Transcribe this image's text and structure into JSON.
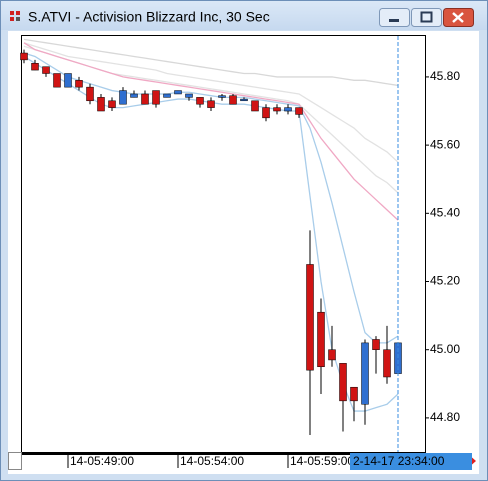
{
  "chart_data": {
    "type": "candlestick",
    "title": "S.ATVI - Activision Blizzard Inc, 30 Sec",
    "categories": [
      null,
      null,
      null,
      null,
      "14-05:49:00",
      null,
      null,
      null,
      null,
      null,
      null,
      null,
      null,
      null,
      "14-05:54:00",
      null,
      null,
      null,
      null,
      null,
      null,
      null,
      null,
      null,
      "14-05:59:00",
      null,
      null,
      null,
      null,
      null,
      null,
      null,
      null,
      null,
      null
    ],
    "open": [
      45.87,
      45.84,
      45.83,
      45.81,
      45.77,
      45.79,
      45.77,
      45.74,
      45.73,
      45.72,
      45.74,
      45.75,
      45.76,
      45.74,
      45.75,
      45.74,
      45.74,
      45.73,
      45.74,
      45.745,
      45.73,
      45.73,
      45.71,
      45.71,
      45.7,
      45.71,
      45.25,
      45.11,
      45.0,
      44.96,
      44.89,
      44.84,
      45.03,
      45.0,
      44.93
    ],
    "high": [
      45.88,
      45.85,
      45.83,
      45.81,
      45.81,
      45.8,
      45.78,
      45.75,
      45.74,
      45.77,
      45.76,
      45.76,
      45.76,
      45.75,
      45.76,
      45.75,
      45.74,
      45.74,
      45.75,
      45.75,
      45.74,
      45.73,
      45.72,
      45.72,
      45.72,
      45.71,
      45.35,
      45.15,
      45.07,
      44.96,
      44.89,
      45.03,
      45.04,
      45.07,
      45.02
    ],
    "low": [
      45.84,
      45.82,
      45.8,
      45.77,
      45.77,
      45.76,
      45.72,
      45.7,
      45.7,
      45.72,
      45.74,
      45.72,
      45.71,
      45.74,
      45.75,
      45.73,
      45.71,
      45.7,
      45.73,
      45.72,
      45.73,
      45.7,
      45.67,
      45.69,
      45.69,
      45.68,
      44.75,
      44.87,
      44.95,
      44.76,
      44.79,
      44.78,
      44.93,
      44.9,
      44.93
    ],
    "close": [
      45.85,
      45.82,
      45.81,
      45.77,
      45.81,
      45.77,
      45.73,
      45.7,
      45.71,
      45.76,
      45.75,
      45.72,
      45.72,
      45.75,
      45.76,
      45.75,
      45.72,
      45.71,
      45.745,
      45.72,
      45.735,
      45.7,
      45.68,
      45.7,
      45.71,
      45.69,
      44.94,
      44.95,
      44.97,
      44.85,
      44.85,
      45.02,
      45.0,
      44.92,
      45.02
    ],
    "up_color": "#2f6fd0",
    "down_color": "#d01414",
    "series": [
      {
        "color": "#d8d8d8",
        "values": [
          45.91,
          45.905,
          45.9,
          45.895,
          45.89,
          45.885,
          45.88,
          45.875,
          45.87,
          45.865,
          45.86,
          45.855,
          45.85,
          45.845,
          45.84,
          45.835,
          45.83,
          45.825,
          45.82,
          45.815,
          45.81,
          45.81,
          45.805,
          45.8,
          45.8,
          45.8,
          45.8,
          45.8,
          45.8,
          45.795,
          45.79,
          45.79,
          45.785,
          45.78,
          45.775
        ]
      },
      {
        "color": "#e2e2e2",
        "values": [
          45.9,
          45.89,
          45.88,
          45.87,
          45.86,
          45.855,
          45.85,
          45.845,
          45.84,
          45.835,
          45.83,
          45.825,
          45.82,
          45.81,
          45.805,
          45.8,
          45.795,
          45.79,
          45.785,
          45.78,
          45.775,
          45.77,
          45.765,
          45.76,
          45.755,
          45.75,
          45.73,
          45.71,
          45.69,
          45.67,
          45.65,
          45.62,
          45.6,
          45.58,
          45.55
        ]
      },
      {
        "color": "#e2e2e2",
        "values": [
          45.89,
          45.88,
          45.87,
          45.86,
          45.85,
          45.84,
          45.83,
          45.82,
          45.81,
          45.805,
          45.8,
          45.795,
          45.79,
          45.785,
          45.78,
          45.775,
          45.77,
          45.765,
          45.76,
          45.755,
          45.75,
          45.745,
          45.74,
          45.735,
          45.73,
          45.72,
          45.69,
          45.66,
          45.63,
          45.6,
          45.57,
          45.54,
          45.51,
          45.49,
          45.46
        ]
      },
      {
        "color": "#f0a8c4",
        "values": [
          45.9,
          45.88,
          45.87,
          45.86,
          45.85,
          45.84,
          45.83,
          45.82,
          45.81,
          45.8,
          45.795,
          45.79,
          45.785,
          45.78,
          45.775,
          45.77,
          45.765,
          45.76,
          45.755,
          45.75,
          45.745,
          45.74,
          45.735,
          45.73,
          45.725,
          45.72,
          45.67,
          45.62,
          45.58,
          45.54,
          45.5,
          45.47,
          45.44,
          45.41,
          45.38
        ]
      },
      {
        "color": "#a9cdea",
        "values": [
          45.87,
          45.86,
          45.84,
          45.82,
          45.8,
          45.79,
          45.78,
          45.77,
          45.76,
          45.755,
          45.75,
          45.75,
          45.75,
          45.75,
          45.755,
          45.755,
          45.75,
          45.745,
          45.74,
          45.74,
          45.74,
          45.735,
          45.73,
          45.725,
          45.72,
          45.715,
          45.65,
          45.55,
          45.43,
          45.3,
          45.17,
          45.05,
          45.02,
          45.02,
          45.04
        ]
      },
      {
        "color": "#a9cdea",
        "values": [
          45.86,
          45.84,
          45.82,
          45.8,
          45.78,
          45.76,
          45.74,
          45.72,
          45.71,
          45.71,
          45.715,
          45.72,
          45.725,
          45.73,
          45.735,
          45.735,
          45.73,
          45.725,
          45.72,
          45.72,
          45.72,
          45.715,
          45.71,
          45.705,
          45.7,
          45.7,
          45.45,
          45.2,
          45.0,
          44.9,
          44.82,
          44.82,
          44.83,
          44.84,
          44.87
        ]
      }
    ],
    "ylim": [
      44.7,
      45.92
    ],
    "yticks": [
      {
        "value": 44.8,
        "label": "44.80"
      },
      {
        "value": 45.0,
        "label": "45.00"
      },
      {
        "value": 45.2,
        "label": "45.20"
      },
      {
        "value": 45.4,
        "label": "45.40"
      },
      {
        "value": 45.6,
        "label": "45.60"
      },
      {
        "value": 45.8,
        "label": "45.80"
      }
    ],
    "cursor_label": "2-14-17 23:34:00",
    "cursor_index": 34,
    "cursor_color": "#3a8ee0"
  }
}
